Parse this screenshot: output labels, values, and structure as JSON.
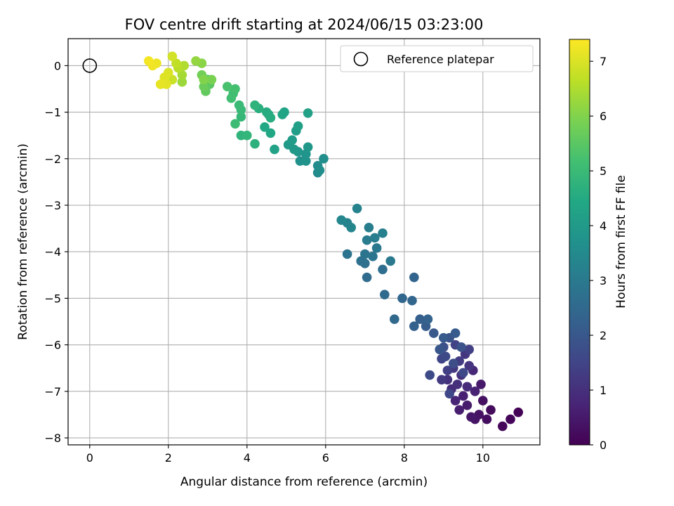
{
  "chart_data": {
    "type": "scatter",
    "title": "FOV centre drift starting at 2024/06/15 03:23:00",
    "xlabel": "Angular distance from reference (arcmin)",
    "ylabel": "Rotation from reference (arcmin)",
    "xlim": [
      -0.55,
      11.45
    ],
    "ylim": [
      -8.15,
      0.58
    ],
    "xticks": [
      0,
      2,
      4,
      6,
      8,
      10
    ],
    "yticks": [
      0,
      -1,
      -2,
      -3,
      -4,
      -5,
      -6,
      -7,
      -8
    ],
    "grid": true,
    "legend": {
      "placement": "top-right",
      "entries": [
        "Reference platepar"
      ]
    },
    "reference_point": {
      "name": "Reference platepar",
      "x": 0,
      "y": 0,
      "marker": "open-circle"
    },
    "colorbar": {
      "label": "Hours from first FF file",
      "colormap": "viridis",
      "range": [
        0,
        7.4
      ],
      "ticks": [
        0,
        1,
        2,
        3,
        4,
        5,
        6,
        7
      ]
    },
    "points": [
      [
        10.9,
        -7.45,
        0.05
      ],
      [
        10.7,
        -7.6,
        0.1
      ],
      [
        10.5,
        -7.75,
        0.15
      ],
      [
        10.2,
        -7.4,
        0.2
      ],
      [
        10.1,
        -7.6,
        0.25
      ],
      [
        10.0,
        -7.2,
        0.3
      ],
      [
        9.9,
        -7.5,
        0.35
      ],
      [
        9.8,
        -7.6,
        0.4
      ],
      [
        9.7,
        -7.55,
        0.45
      ],
      [
        9.95,
        -6.85,
        0.5
      ],
      [
        9.6,
        -7.3,
        0.55
      ],
      [
        9.4,
        -7.4,
        0.6
      ],
      [
        9.5,
        -7.1,
        0.65
      ],
      [
        9.8,
        -7.0,
        0.7
      ],
      [
        9.3,
        -7.2,
        0.75
      ],
      [
        9.75,
        -6.55,
        0.8
      ],
      [
        9.6,
        -6.9,
        0.85
      ],
      [
        9.2,
        -6.95,
        0.9
      ],
      [
        9.45,
        -6.65,
        0.95
      ],
      [
        9.35,
        -6.85,
        1.0
      ],
      [
        9.1,
        -6.75,
        1.05
      ],
      [
        9.65,
        -6.45,
        1.1
      ],
      [
        9.55,
        -6.2,
        1.15
      ],
      [
        9.25,
        -6.5,
        1.2
      ],
      [
        8.95,
        -6.75,
        1.25
      ],
      [
        9.4,
        -6.35,
        1.3
      ],
      [
        9.1,
        -6.55,
        1.35
      ],
      [
        9.65,
        -6.1,
        1.4
      ],
      [
        9.3,
        -6.0,
        1.45
      ],
      [
        8.95,
        -6.3,
        1.5
      ],
      [
        9.15,
        -7.05,
        1.55
      ],
      [
        9.5,
        -6.6,
        1.6
      ],
      [
        9.05,
        -6.25,
        1.65
      ],
      [
        8.65,
        -6.65,
        1.7
      ],
      [
        9.25,
        -6.4,
        1.75
      ],
      [
        9.0,
        -6.05,
        1.8
      ],
      [
        9.45,
        -6.05,
        1.85
      ],
      [
        9.15,
        -5.85,
        1.9
      ],
      [
        8.9,
        -6.1,
        1.95
      ],
      [
        8.75,
        -5.75,
        2.0
      ],
      [
        9.0,
        -5.85,
        2.05
      ],
      [
        9.3,
        -5.75,
        2.1
      ],
      [
        8.55,
        -5.6,
        2.15
      ],
      [
        8.4,
        -5.45,
        2.2
      ],
      [
        8.25,
        -5.6,
        2.25
      ],
      [
        8.6,
        -5.45,
        2.3
      ],
      [
        8.25,
        -4.55,
        2.35
      ],
      [
        8.2,
        -5.05,
        2.4
      ],
      [
        7.95,
        -5.0,
        2.45
      ],
      [
        7.75,
        -5.45,
        2.5
      ],
      [
        7.5,
        -4.92,
        2.55
      ],
      [
        7.05,
        -4.55,
        2.6
      ],
      [
        7.45,
        -4.38,
        2.65
      ],
      [
        7.0,
        -4.25,
        2.7
      ],
      [
        6.9,
        -4.2,
        2.75
      ],
      [
        6.55,
        -4.05,
        2.8
      ],
      [
        7.0,
        -4.05,
        2.85
      ],
      [
        7.2,
        -4.1,
        2.9
      ],
      [
        7.3,
        -3.92,
        2.95
      ],
      [
        7.65,
        -4.2,
        3.0
      ],
      [
        7.05,
        -3.75,
        3.05
      ],
      [
        7.25,
        -3.7,
        3.1
      ],
      [
        7.1,
        -3.48,
        3.15
      ],
      [
        7.45,
        -3.6,
        3.2
      ],
      [
        6.8,
        -3.07,
        3.25
      ],
      [
        6.55,
        -3.38,
        3.3
      ],
      [
        6.65,
        -3.48,
        3.35
      ],
      [
        6.4,
        -3.32,
        3.4
      ],
      [
        5.8,
        -2.3,
        3.5
      ],
      [
        5.8,
        -2.15,
        3.55
      ],
      [
        5.85,
        -2.25,
        3.6
      ],
      [
        5.95,
        -2.0,
        3.65
      ],
      [
        5.35,
        -2.05,
        3.7
      ],
      [
        5.5,
        -2.05,
        3.75
      ],
      [
        5.5,
        -1.9,
        3.8
      ],
      [
        5.3,
        -1.85,
        3.85
      ],
      [
        5.55,
        -1.75,
        3.9
      ],
      [
        5.2,
        -1.8,
        3.95
      ],
      [
        5.05,
        -1.7,
        4.0
      ],
      [
        5.15,
        -1.6,
        4.05
      ],
      [
        5.25,
        -1.4,
        4.1
      ],
      [
        5.3,
        -1.3,
        4.15
      ],
      [
        5.55,
        -1.02,
        4.2
      ],
      [
        4.7,
        -1.8,
        4.25
      ],
      [
        4.95,
        -1.0,
        4.3
      ],
      [
        4.9,
        -1.05,
        4.35
      ],
      [
        4.6,
        -1.45,
        4.4
      ],
      [
        4.45,
        -1.32,
        4.45
      ],
      [
        4.55,
        -1.05,
        4.5
      ],
      [
        4.5,
        -1.0,
        4.55
      ],
      [
        4.6,
        -1.12,
        4.6
      ],
      [
        4.3,
        -0.92,
        4.65
      ],
      [
        4.2,
        -1.68,
        4.7
      ],
      [
        4.2,
        -0.85,
        4.75
      ],
      [
        3.85,
        -1.5,
        4.8
      ],
      [
        4.0,
        -1.5,
        4.85
      ],
      [
        3.85,
        -1.1,
        4.9
      ],
      [
        3.85,
        -0.95,
        4.95
      ],
      [
        3.8,
        -0.85,
        5.0
      ],
      [
        3.7,
        -1.25,
        5.05
      ],
      [
        3.65,
        -0.6,
        5.1
      ],
      [
        3.6,
        -0.7,
        5.15
      ],
      [
        3.7,
        -0.5,
        5.2
      ],
      [
        3.5,
        -0.45,
        5.25
      ],
      [
        3.0,
        -0.3,
        5.4
      ],
      [
        3.05,
        -0.4,
        5.5
      ],
      [
        2.95,
        -0.55,
        5.6
      ],
      [
        2.9,
        -0.45,
        5.7
      ],
      [
        2.85,
        -0.2,
        5.8
      ],
      [
        3.1,
        -0.3,
        5.9
      ],
      [
        2.9,
        -0.3,
        6.0
      ],
      [
        2.85,
        0.05,
        6.1
      ],
      [
        2.7,
        0.1,
        6.2
      ],
      [
        2.35,
        -0.35,
        6.3
      ],
      [
        2.35,
        -0.2,
        6.4
      ],
      [
        2.4,
        0.0,
        6.5
      ],
      [
        2.25,
        -0.05,
        6.6
      ],
      [
        2.2,
        0.05,
        6.7
      ],
      [
        2.1,
        -0.3,
        6.8
      ],
      [
        2.1,
        0.2,
        6.9
      ],
      [
        2.0,
        -0.15,
        7.0
      ],
      [
        1.9,
        -0.25,
        7.05
      ],
      [
        1.95,
        -0.4,
        7.1
      ],
      [
        1.8,
        -0.4,
        7.15
      ],
      [
        1.7,
        0.05,
        7.2
      ],
      [
        1.6,
        0.0,
        7.25
      ],
      [
        1.5,
        0.1,
        7.3
      ]
    ]
  }
}
